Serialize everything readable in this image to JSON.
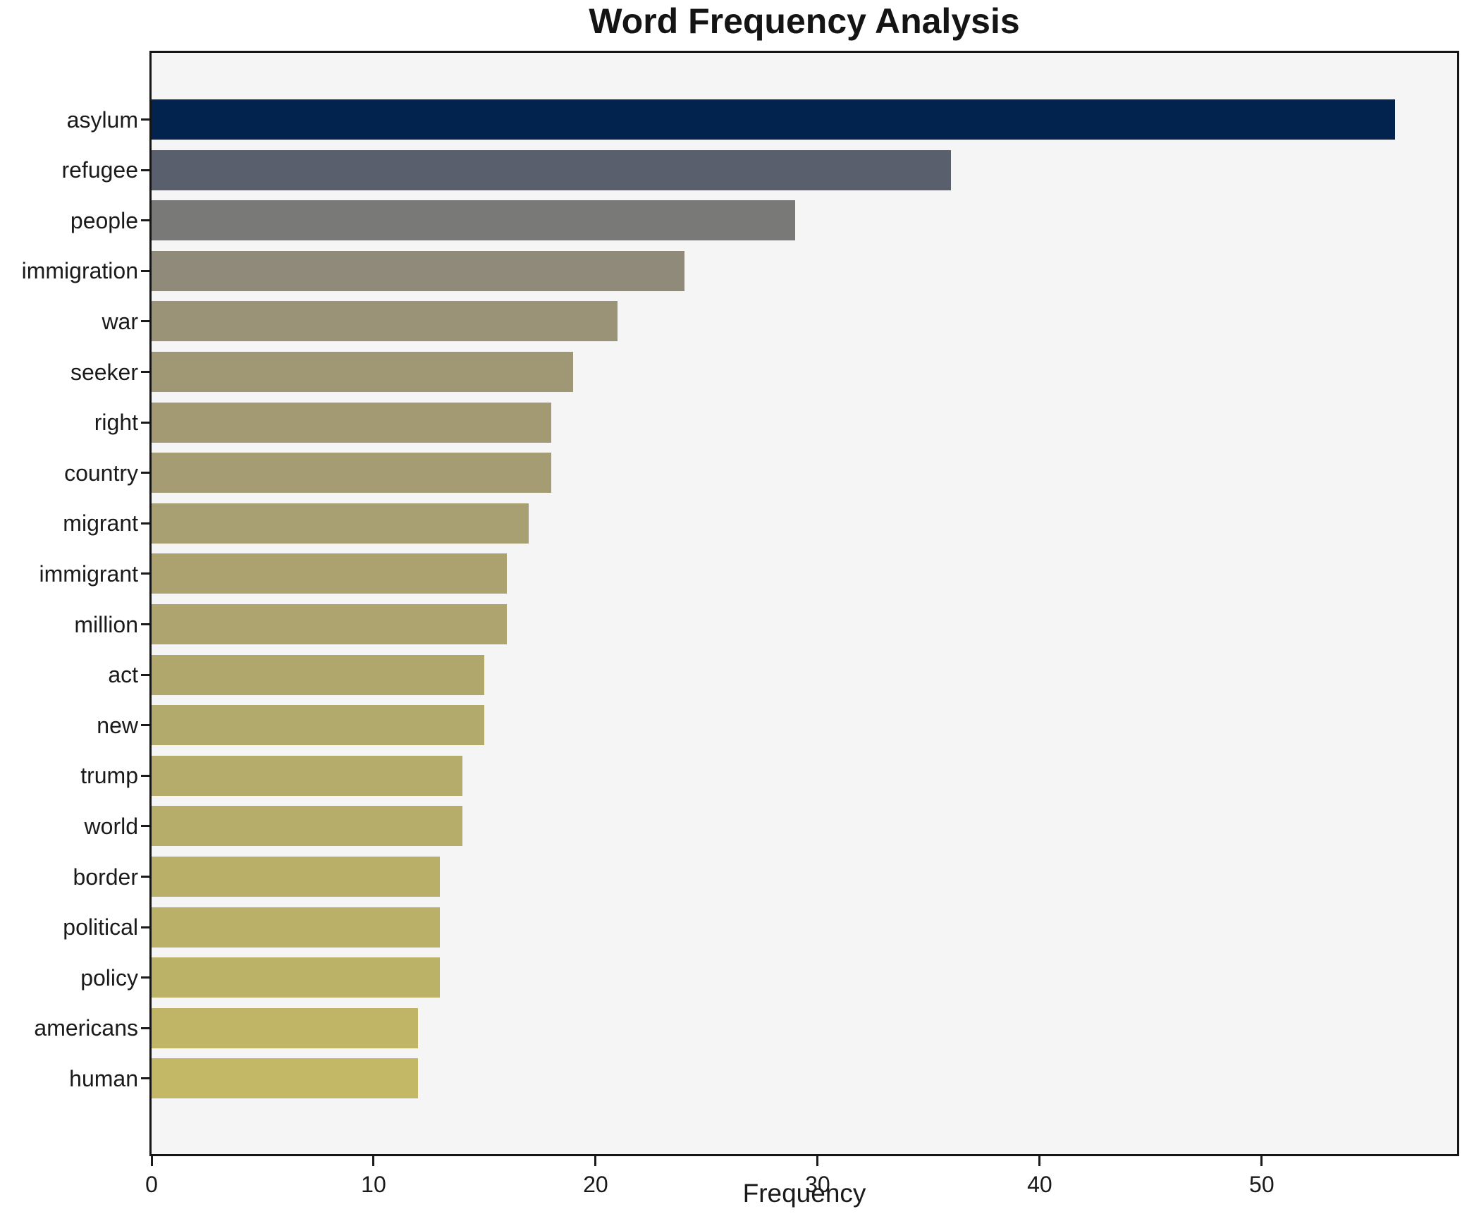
{
  "chart_data": {
    "type": "bar",
    "orientation": "horizontal",
    "title": "Word Frequency Analysis",
    "xlabel": "Frequency",
    "ylabel": "",
    "categories": [
      "asylum",
      "refugee",
      "people",
      "immigration",
      "war",
      "seeker",
      "right",
      "country",
      "migrant",
      "immigrant",
      "million",
      "act",
      "new",
      "trump",
      "world",
      "border",
      "political",
      "policy",
      "americans",
      "human"
    ],
    "values": [
      56,
      36,
      29,
      24,
      21,
      19,
      18,
      18,
      17,
      16,
      16,
      15,
      15,
      14,
      14,
      13,
      13,
      13,
      12,
      12
    ],
    "bar_colors": [
      "#02234e",
      "#5a5f6e",
      "#797a78",
      "#908a7a",
      "#9a9377",
      "#a09875",
      "#a39a74",
      "#a59c73",
      "#a89f72",
      "#aba26f",
      "#ada46f",
      "#b0a76d",
      "#b2a96c",
      "#b5ab6b",
      "#b7ad6a",
      "#b9af69",
      "#bbb068",
      "#bcb267",
      "#c0b566",
      "#c3b866"
    ],
    "xlim": [
      0,
      58.8
    ],
    "xticks": [
      0,
      10,
      20,
      30,
      40,
      50
    ],
    "grid": false,
    "legend": "none",
    "plot_background": "#f5f5f5",
    "figure_background": "#ffffff",
    "spine_color": "#151515"
  }
}
